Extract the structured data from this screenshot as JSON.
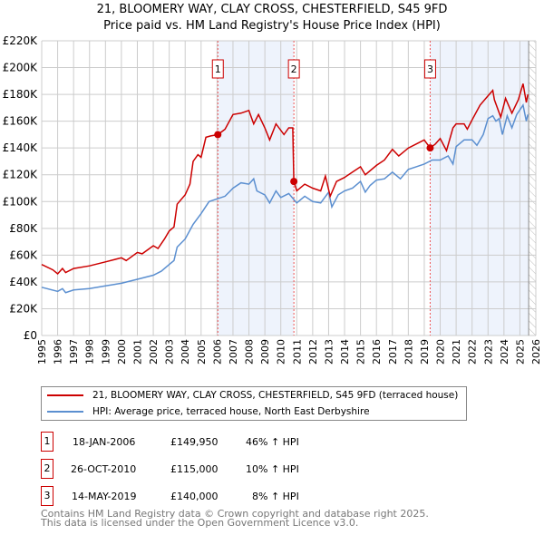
{
  "chart_data": {
    "type": "line",
    "title": "21, BLOOMERY WAY, CLAY CROSS, CHESTERFIELD, S45 9FD",
    "subtitle": "Price paid vs. HM Land Registry's House Price Index (HPI)",
    "xlim": [
      1995,
      2026
    ],
    "ylim": [
      0,
      220000
    ],
    "x_ticks": [
      "1995",
      "1996",
      "1997",
      "1998",
      "1999",
      "2000",
      "2001",
      "2002",
      "2003",
      "2004",
      "2005",
      "2006",
      "2007",
      "2008",
      "2009",
      "2010",
      "2011",
      "2012",
      "2013",
      "2014",
      "2015",
      "2016",
      "2017",
      "2018",
      "2019",
      "2020",
      "2021",
      "2022",
      "2023",
      "2024",
      "2025",
      "2026"
    ],
    "y_ticks": [
      {
        "v": 0,
        "label": "£0"
      },
      {
        "v": 20000,
        "label": "£20K"
      },
      {
        "v": 40000,
        "label": "£40K"
      },
      {
        "v": 60000,
        "label": "£60K"
      },
      {
        "v": 80000,
        "label": "£80K"
      },
      {
        "v": 100000,
        "label": "£100K"
      },
      {
        "v": 120000,
        "label": "£120K"
      },
      {
        "v": 140000,
        "label": "£140K"
      },
      {
        "v": 160000,
        "label": "£160K"
      },
      {
        "v": 180000,
        "label": "£180K"
      },
      {
        "v": 200000,
        "label": "£200K"
      },
      {
        "v": 220000,
        "label": "£220K"
      }
    ],
    "grid": true,
    "shaded_ranges": [
      [
        2006.05,
        2010.82
      ],
      [
        2019.37,
        2025.55
      ]
    ],
    "forecast_hatch_from": 2025.55,
    "series": [
      {
        "name": "21, BLOOMERY WAY, CLAY CROSS, CHESTERFIELD, S45 9FD (terraced house)",
        "color": "#cc0000",
        "points": [
          [
            1995,
            53
          ],
          [
            1995.7,
            49
          ],
          [
            1996,
            46
          ],
          [
            1996.3,
            50
          ],
          [
            1996.5,
            47
          ],
          [
            1997,
            50
          ],
          [
            1998,
            52
          ],
          [
            1999,
            55
          ],
          [
            2000,
            58
          ],
          [
            2000.3,
            56
          ],
          [
            2001,
            62
          ],
          [
            2001.3,
            61
          ],
          [
            2002,
            67
          ],
          [
            2002.3,
            65
          ],
          [
            2002.7,
            72
          ],
          [
            2003,
            78
          ],
          [
            2003.3,
            81
          ],
          [
            2003.5,
            98
          ],
          [
            2004,
            105
          ],
          [
            2004.3,
            113
          ],
          [
            2004.5,
            130
          ],
          [
            2004.8,
            135
          ],
          [
            2005,
            133
          ],
          [
            2005.3,
            148
          ],
          [
            2005.6,
            149
          ],
          [
            2006.05,
            149.95
          ],
          [
            2006.5,
            154
          ],
          [
            2007,
            165
          ],
          [
            2007.5,
            166
          ],
          [
            2008,
            168
          ],
          [
            2008.3,
            158
          ],
          [
            2008.6,
            165
          ],
          [
            2009,
            155
          ],
          [
            2009.3,
            146
          ],
          [
            2009.7,
            158
          ],
          [
            2010.2,
            150
          ],
          [
            2010.5,
            155
          ],
          [
            2010.75,
            155
          ],
          [
            2010.82,
            115
          ],
          [
            2011,
            108
          ],
          [
            2011.5,
            113
          ],
          [
            2012,
            110
          ],
          [
            2012.5,
            108
          ],
          [
            2012.8,
            119
          ],
          [
            2013.1,
            104
          ],
          [
            2013.5,
            115
          ],
          [
            2014,
            118
          ],
          [
            2014.5,
            122
          ],
          [
            2015,
            126
          ],
          [
            2015.3,
            120
          ],
          [
            2016,
            127
          ],
          [
            2016.5,
            131
          ],
          [
            2017,
            139
          ],
          [
            2017.4,
            134
          ],
          [
            2018,
            140
          ],
          [
            2018.5,
            143
          ],
          [
            2019,
            146
          ],
          [
            2019.37,
            140
          ],
          [
            2019.7,
            143
          ],
          [
            2020,
            147
          ],
          [
            2020.4,
            138
          ],
          [
            2020.8,
            155
          ],
          [
            2021,
            158
          ],
          [
            2021.5,
            158
          ],
          [
            2021.7,
            154
          ],
          [
            2022,
            161
          ],
          [
            2022.5,
            172
          ],
          [
            2023,
            179
          ],
          [
            2023.3,
            183
          ],
          [
            2023.4,
            176
          ],
          [
            2023.8,
            163
          ],
          [
            2024.1,
            177
          ],
          [
            2024.5,
            166
          ],
          [
            2024.9,
            176
          ],
          [
            2025.2,
            188
          ],
          [
            2025.4,
            174
          ],
          [
            2025.5,
            180
          ]
        ]
      },
      {
        "name": "HPI: Average price, terraced house, North East Derbyshire",
        "color": "#5b8fd0",
        "points": [
          [
            1995,
            36
          ],
          [
            1996,
            33
          ],
          [
            1996.3,
            35
          ],
          [
            1996.5,
            32
          ],
          [
            1997,
            34
          ],
          [
            1998,
            35
          ],
          [
            1999,
            37
          ],
          [
            2000,
            39
          ],
          [
            2001,
            42
          ],
          [
            2002,
            45
          ],
          [
            2002.5,
            48
          ],
          [
            2003,
            53
          ],
          [
            2003.3,
            56
          ],
          [
            2003.5,
            66
          ],
          [
            2004,
            72
          ],
          [
            2004.5,
            83
          ],
          [
            2005,
            91
          ],
          [
            2005.5,
            100
          ],
          [
            2006,
            102
          ],
          [
            2006.5,
            104
          ],
          [
            2007,
            110
          ],
          [
            2007.5,
            114
          ],
          [
            2008,
            113
          ],
          [
            2008.3,
            117
          ],
          [
            2008.5,
            108
          ],
          [
            2009,
            105
          ],
          [
            2009.3,
            99
          ],
          [
            2009.7,
            108
          ],
          [
            2010,
            103
          ],
          [
            2010.5,
            106
          ],
          [
            2011,
            99
          ],
          [
            2011.5,
            104
          ],
          [
            2012,
            100
          ],
          [
            2012.5,
            99
          ],
          [
            2013,
            107
          ],
          [
            2013.2,
            96
          ],
          [
            2013.6,
            105
          ],
          [
            2014,
            108
          ],
          [
            2014.5,
            110
          ],
          [
            2015,
            115
          ],
          [
            2015.3,
            107
          ],
          [
            2015.6,
            112
          ],
          [
            2016,
            116
          ],
          [
            2016.5,
            117
          ],
          [
            2017,
            122
          ],
          [
            2017.5,
            117
          ],
          [
            2018,
            124
          ],
          [
            2018.5,
            126
          ],
          [
            2019,
            128
          ],
          [
            2019.5,
            131
          ],
          [
            2020,
            131
          ],
          [
            2020.5,
            134
          ],
          [
            2020.8,
            128
          ],
          [
            2021,
            141
          ],
          [
            2021.5,
            146
          ],
          [
            2022,
            146
          ],
          [
            2022.3,
            142
          ],
          [
            2022.7,
            150
          ],
          [
            2023,
            162
          ],
          [
            2023.3,
            164
          ],
          [
            2023.5,
            160
          ],
          [
            2023.7,
            162
          ],
          [
            2023.9,
            150
          ],
          [
            2024.2,
            164
          ],
          [
            2024.5,
            155
          ],
          [
            2024.8,
            165
          ],
          [
            2025.2,
            172
          ],
          [
            2025.4,
            160
          ],
          [
            2025.5,
            165
          ]
        ]
      }
    ],
    "sales": [
      {
        "num": "1",
        "x": 2006.05,
        "y": 149950
      },
      {
        "num": "2",
        "x": 2010.82,
        "y": 115000
      },
      {
        "num": "3",
        "x": 2019.37,
        "y": 140000
      }
    ]
  },
  "legend": {
    "property": "21, BLOOMERY WAY, CLAY CROSS, CHESTERFIELD, S45 9FD (terraced house)",
    "hpi": "HPI: Average price, terraced house, North East Derbyshire"
  },
  "transactions": [
    {
      "num": "1",
      "date": "18-JAN-2006",
      "price": "£149,950",
      "hpi": "46% ↑ HPI"
    },
    {
      "num": "2",
      "date": "26-OCT-2010",
      "price": "£115,000",
      "hpi": "10% ↑ HPI"
    },
    {
      "num": "3",
      "date": "14-MAY-2019",
      "price": "£140,000",
      "hpi": "8% ↑ HPI"
    }
  ],
  "footer": {
    "line1": "Contains HM Land Registry data © Crown copyright and database right 2025.",
    "line2": "This data is licensed under the Open Government Licence v3.0."
  }
}
